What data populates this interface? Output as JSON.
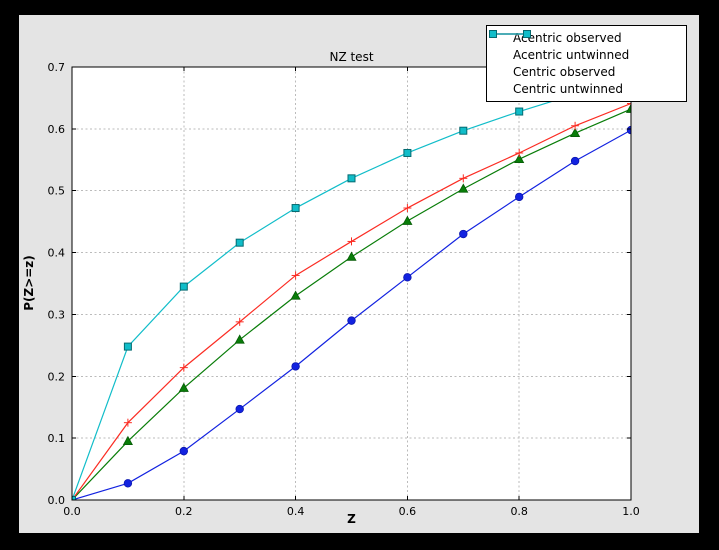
{
  "figure": {
    "outer_background": "#000000",
    "background": "#e4e4e4",
    "plot_background": "#ffffff",
    "grid_color": "#bbbbbb",
    "spine_color": "#000000"
  },
  "chart_data": {
    "type": "line",
    "title": "NZ test",
    "xlabel": "Z",
    "ylabel": "P(Z>=z)",
    "xlim": [
      0.0,
      1.0
    ],
    "ylim": [
      0.0,
      0.7
    ],
    "xticks": [
      0.0,
      0.2,
      0.4,
      0.6,
      0.8,
      1.0
    ],
    "yticks": [
      0.0,
      0.1,
      0.2,
      0.3,
      0.4,
      0.5,
      0.6,
      0.7
    ],
    "grid": true,
    "legend_position": "upper right",
    "x": [
      0.0,
      0.1,
      0.2,
      0.3,
      0.4,
      0.5,
      0.6,
      0.7,
      0.8,
      0.9,
      1.0
    ],
    "series": [
      {
        "name": "Acentric observed",
        "color": "#1222e0",
        "marker": "circle",
        "marker_fill": "#1222e0",
        "marker_edge": "#0c17ad",
        "legend_markers": false,
        "values": [
          0.0,
          0.027,
          0.079,
          0.147,
          0.216,
          0.29,
          0.36,
          0.43,
          0.49,
          0.548,
          0.598
        ]
      },
      {
        "name": "Acentric untwinned",
        "color": "#097d09",
        "marker": "triangle",
        "marker_fill": "#097d09",
        "marker_edge": "#065c06",
        "legend_markers": false,
        "values": [
          0.0,
          0.095,
          0.181,
          0.259,
          0.33,
          0.393,
          0.451,
          0.503,
          0.551,
          0.593,
          0.632
        ]
      },
      {
        "name": "Centric observed",
        "color": "#fb2c23",
        "marker": "plus",
        "marker_fill": "#fb2c23",
        "marker_edge": "#fb2c23",
        "legend_markers": true,
        "values": [
          0.0,
          0.125,
          0.214,
          0.288,
          0.363,
          0.418,
          0.472,
          0.52,
          0.561,
          0.605,
          0.641
        ]
      },
      {
        "name": "Centric untwinned",
        "color": "#11bdc9",
        "marker": "square",
        "marker_fill": "#11bdc9",
        "marker_edge": "#056a70",
        "legend_markers": true,
        "values": [
          0.0,
          0.248,
          0.345,
          0.416,
          0.472,
          0.52,
          0.561,
          0.597,
          0.628,
          0.656,
          0.682
        ]
      }
    ]
  }
}
